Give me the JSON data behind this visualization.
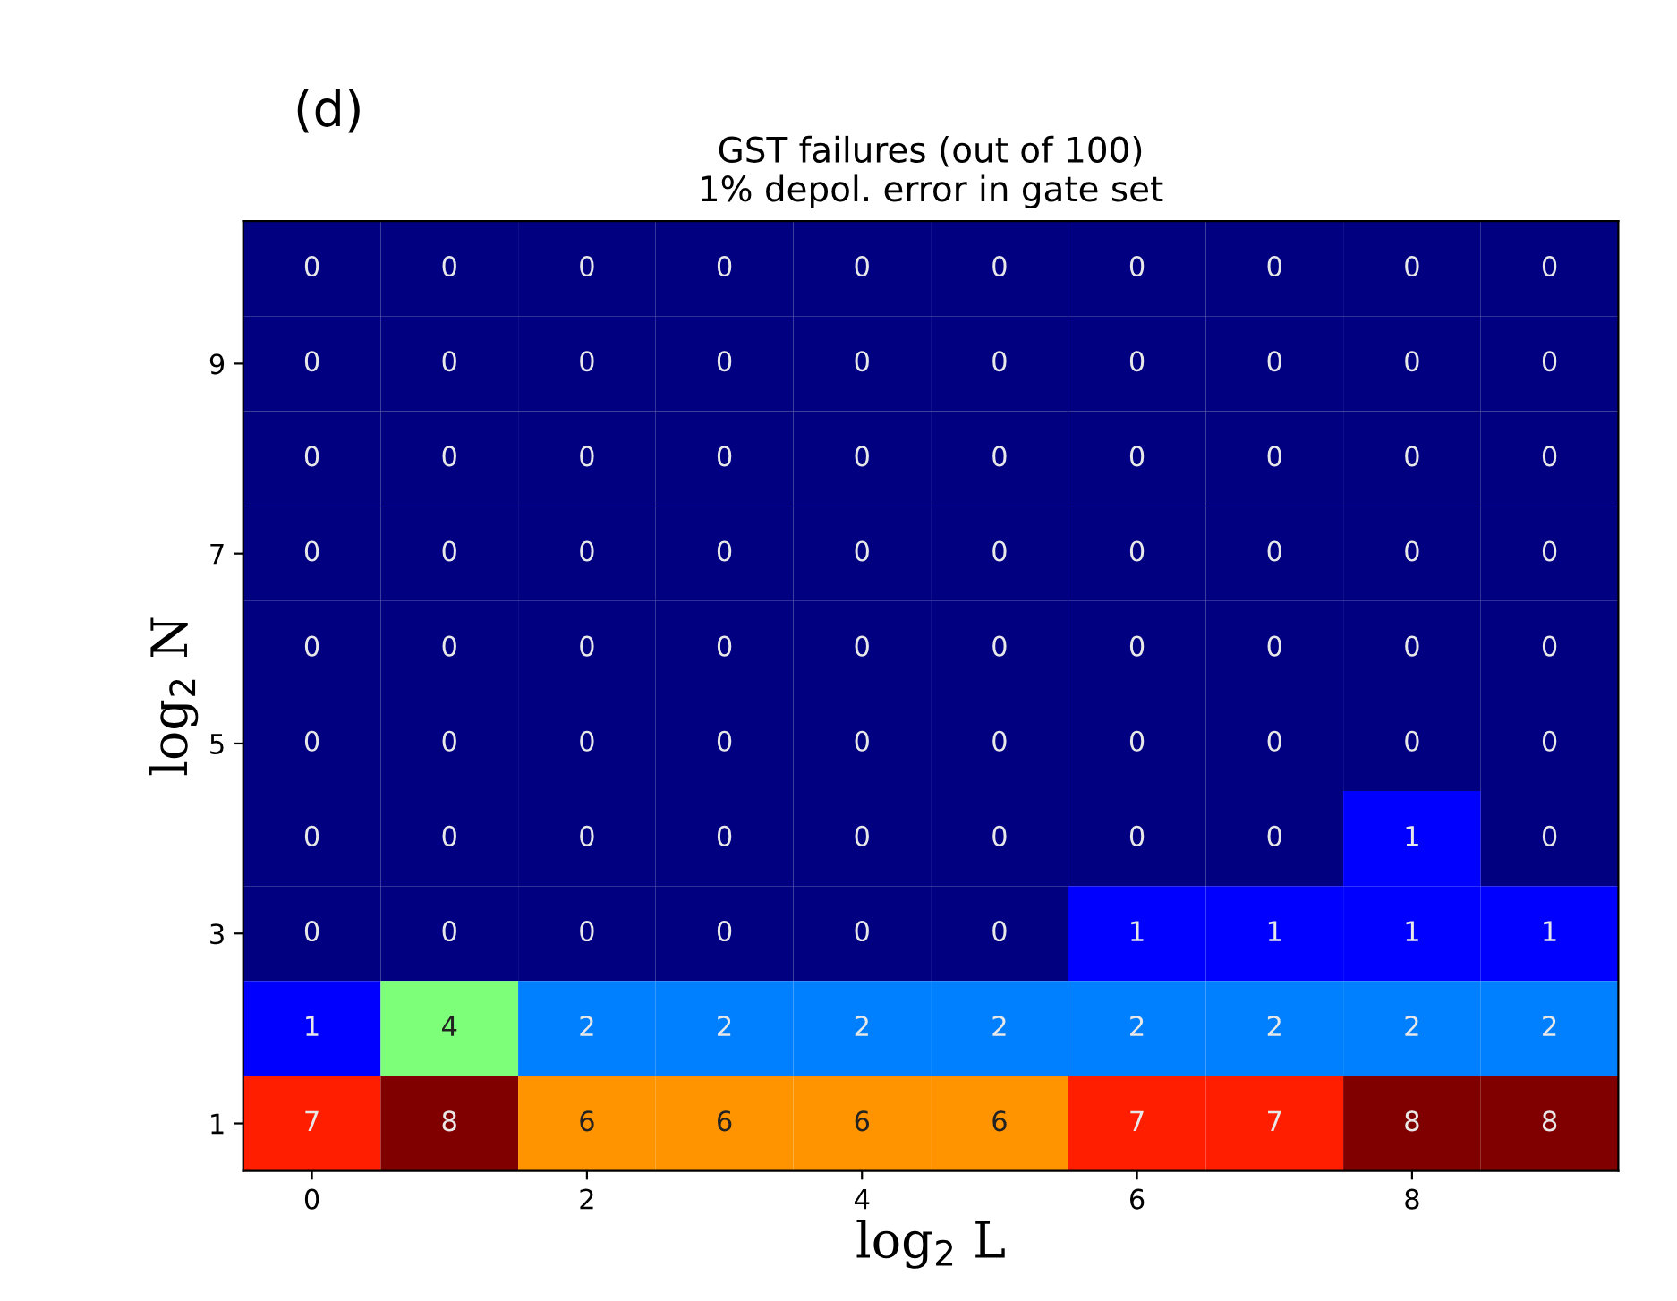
{
  "chart_data": {
    "type": "heatmap",
    "title": "GST failures (out of 100)",
    "subtitle": "1% depol. error in gate set",
    "xlabel": "log$_{2}$ L",
    "ylabel": "log$_{2}$ N",
    "annotations": [
      "(d)"
    ],
    "categories": [
      "0",
      null,
      "2",
      null,
      "4",
      null,
      "6",
      null,
      "8",
      null
    ],
    "y_categories": [
      null,
      "9",
      null,
      "7",
      null,
      "5",
      null,
      "3",
      null,
      "1"
    ],
    "cells": [
      [
        0,
        0,
        0,
        0,
        0,
        0,
        0,
        0,
        0,
        0
      ],
      [
        0,
        0,
        0,
        0,
        0,
        0,
        0,
        0,
        0,
        0
      ],
      [
        0,
        0,
        0,
        0,
        0,
        0,
        0,
        0,
        0,
        0
      ],
      [
        0,
        0,
        0,
        0,
        0,
        0,
        0,
        0,
        0,
        0
      ],
      [
        0,
        0,
        0,
        0,
        0,
        0,
        0,
        0,
        0,
        0
      ],
      [
        0,
        0,
        0,
        0,
        0,
        0,
        0,
        0,
        0,
        0
      ],
      [
        0,
        0,
        0,
        0,
        0,
        0,
        0,
        0,
        1,
        0
      ],
      [
        0,
        0,
        0,
        0,
        0,
        0,
        1,
        1,
        1,
        1
      ],
      [
        1,
        4,
        2,
        2,
        2,
        2,
        2,
        2,
        2,
        2
      ],
      [
        7,
        8,
        6,
        6,
        6,
        6,
        7,
        7,
        8,
        8
      ]
    ],
    "data_labels": true
  }
}
